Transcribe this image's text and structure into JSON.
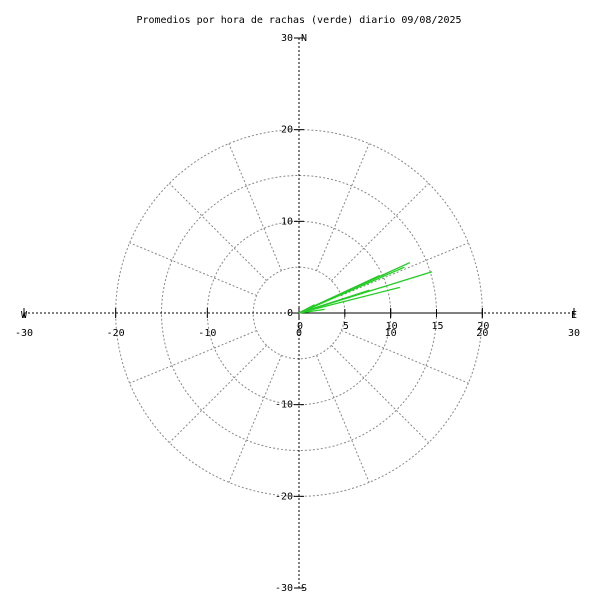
{
  "chart_data": {
    "type": "polar-vectors",
    "title": "Promedios por hora de rachas (verde) diario 09/08/2025",
    "directions": {
      "north": "N",
      "south": "S",
      "east": "E",
      "west": "W"
    },
    "xlim": [
      -30,
      30
    ],
    "ylim": [
      -30,
      30
    ],
    "xticks": [
      -30,
      -20,
      -10,
      0,
      10,
      20,
      30
    ],
    "yticks": [
      -30,
      -20,
      -10,
      0,
      10,
      20,
      30
    ],
    "rticks": [
      0,
      5,
      10,
      15,
      20
    ],
    "color": "#22cc22",
    "x": [
      12.1,
      14.5,
      11.5,
      11.0,
      8.8,
      7.7,
      4.5,
      2.8,
      1.7
    ],
    "y": [
      5.5,
      4.5,
      5.0,
      2.8,
      4.1,
      2.5,
      2.0,
      0.4,
      0.9
    ]
  }
}
